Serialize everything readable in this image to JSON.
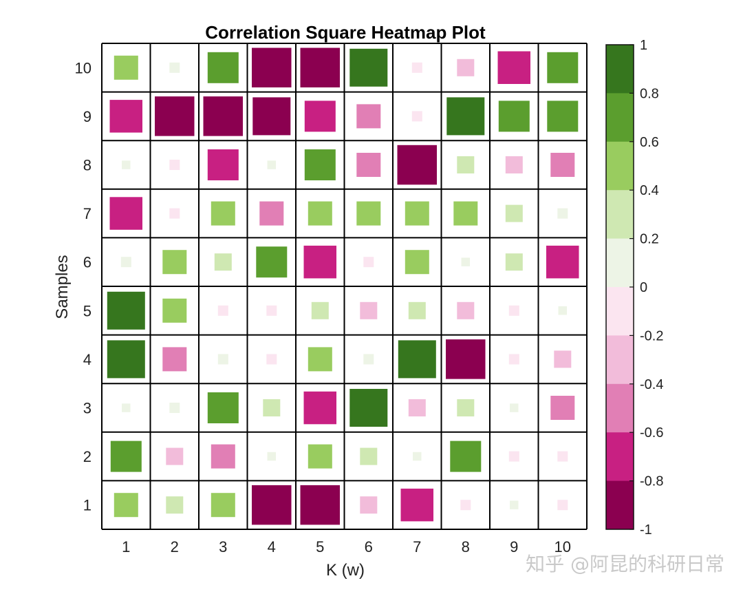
{
  "chart_data": {
    "type": "heatmap",
    "title": "Correlation Square Heatmap Plot",
    "xlabel": "K (w)",
    "ylabel": "Samples",
    "x_categories": [
      "1",
      "2",
      "3",
      "4",
      "5",
      "6",
      "7",
      "8",
      "9",
      "10"
    ],
    "y_categories": [
      "1",
      "2",
      "3",
      "4",
      "5",
      "6",
      "7",
      "8",
      "9",
      "10"
    ],
    "value_range": [
      -1,
      1
    ],
    "encoding": "square size and color both encode value",
    "grid": true,
    "rows": [
      {
        "y": "10",
        "values": [
          0.5,
          0.1,
          0.7,
          -0.95,
          -0.95,
          0.9,
          -0.1,
          -0.3,
          -0.75,
          0.7
        ]
      },
      {
        "y": "9",
        "values": [
          -0.75,
          -0.95,
          -0.95,
          -0.9,
          -0.7,
          -0.5,
          -0.1,
          0.9,
          0.7,
          0.7
        ]
      },
      {
        "y": "8",
        "values": [
          0.05,
          -0.1,
          -0.7,
          0.05,
          0.7,
          -0.5,
          -0.95,
          0.3,
          -0.3,
          -0.5
        ]
      },
      {
        "y": "7",
        "values": [
          -0.75,
          -0.1,
          0.5,
          -0.5,
          0.5,
          0.5,
          0.5,
          0.5,
          0.3,
          0.1
        ]
      },
      {
        "y": "6",
        "values": [
          0.1,
          0.5,
          0.3,
          0.7,
          -0.75,
          -0.1,
          0.5,
          0.05,
          0.3,
          -0.75
        ]
      },
      {
        "y": "5",
        "values": [
          0.9,
          0.5,
          -0.1,
          -0.1,
          0.3,
          -0.3,
          0.3,
          -0.3,
          -0.1,
          0.05
        ]
      },
      {
        "y": "4",
        "values": [
          0.9,
          -0.5,
          0.1,
          -0.1,
          0.5,
          0.1,
          0.9,
          -0.95,
          -0.1,
          -0.3
        ]
      },
      {
        "y": "3",
        "values": [
          0.05,
          0.1,
          0.7,
          0.3,
          -0.75,
          0.9,
          -0.3,
          0.3,
          0.05,
          -0.5
        ]
      },
      {
        "y": "2",
        "values": [
          0.7,
          -0.3,
          -0.5,
          0.05,
          0.5,
          0.3,
          0.05,
          0.7,
          -0.1,
          -0.1
        ]
      },
      {
        "y": "1",
        "values": [
          0.5,
          0.3,
          0.5,
          -0.95,
          -0.95,
          -0.3,
          -0.75,
          -0.1,
          0.05,
          -0.1
        ]
      }
    ],
    "colorbar": {
      "ticks": [
        "1",
        "0.8",
        "0.6",
        "0.4",
        "0.2",
        "0",
        "-0.2",
        "-0.4",
        "-0.6",
        "-0.8",
        "-1"
      ],
      "colors_top_to_bottom": [
        "#36761e",
        "#5b9e2e",
        "#99cc5f",
        "#cfe8b2",
        "#edf4e6",
        "#fbe5f0",
        "#f2bcda",
        "#e17fb5",
        "#c82082",
        "#8b0050"
      ]
    }
  },
  "watermark": {
    "text": "知乎 @阿昆的科研日常"
  }
}
